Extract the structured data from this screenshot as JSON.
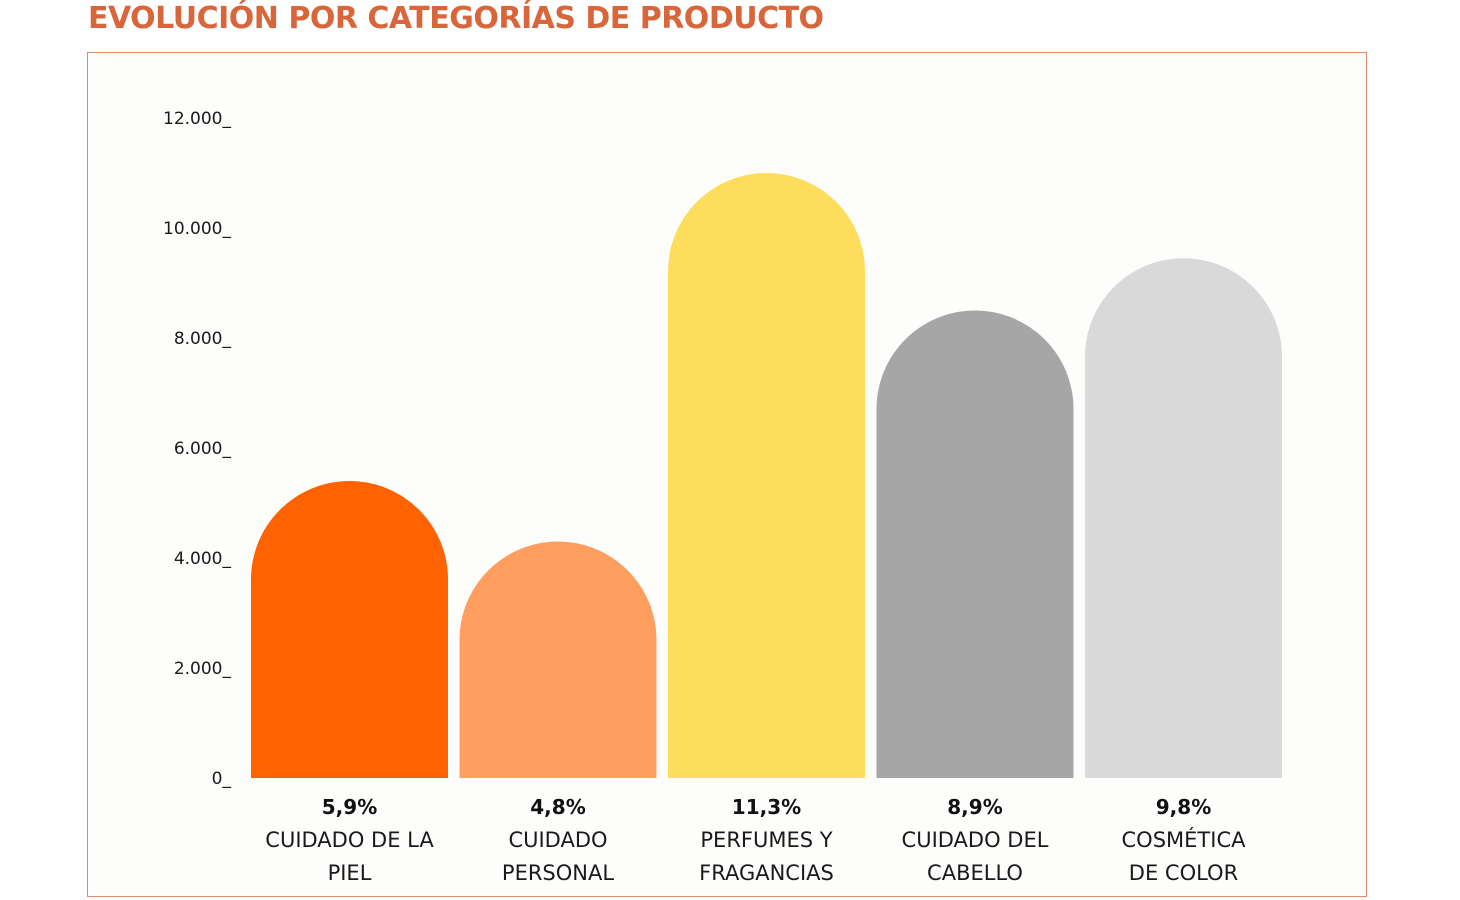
{
  "title": "EVOLUCIÓN POR CATEGORÍAS DE PRODUCTO",
  "chart_data": {
    "type": "bar",
    "categories": [
      [
        "CUIDADO DE LA",
        "PIEL"
      ],
      [
        "CUIDADO",
        "PERSONAL"
      ],
      [
        "PERFUMES Y",
        "FRAGANCIAS"
      ],
      [
        "CUIDADO DEL",
        "CABELLO"
      ],
      [
        "COSMÉTICA",
        "DE COLOR"
      ]
    ],
    "values": [
      5400,
      4300,
      11000,
      8500,
      9450
    ],
    "value_labels": [
      "5,9%",
      "4,8%",
      "11,3%",
      "8,9%",
      "9,8%"
    ],
    "colors": [
      "#ff6200",
      "#ff9e5e",
      "#fedd5c",
      "#a6a6a6",
      "#d9d9d9"
    ],
    "ylim": [
      0,
      12000
    ],
    "yticks": [
      {
        "value": 0,
        "label": "0_"
      },
      {
        "value": 2000,
        "label": "2.000_"
      },
      {
        "value": 4000,
        "label": "4.000_"
      },
      {
        "value": 6000,
        "label": "6.000_"
      },
      {
        "value": 8000,
        "label": "8.000_"
      },
      {
        "value": 10000,
        "label": "10.000_"
      },
      {
        "value": 12000,
        "label": "12.000_"
      }
    ],
    "grid": false,
    "legend": "none"
  }
}
